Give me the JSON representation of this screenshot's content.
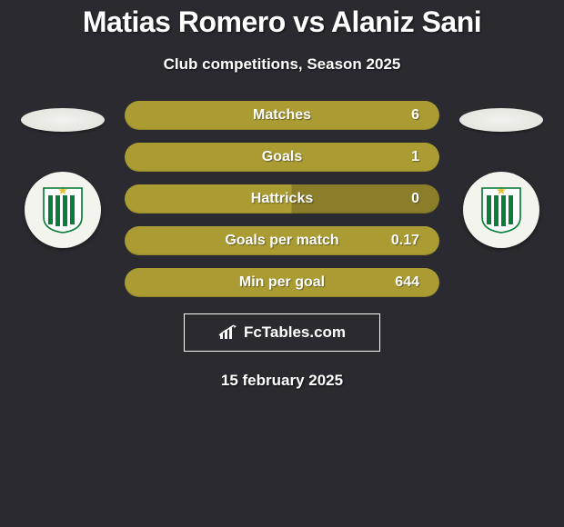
{
  "title_parts": {
    "p1": "Matias Romero",
    "vs": " vs ",
    "p2": "Alaniz Sani"
  },
  "subtitle": "Club competitions, Season 2025",
  "stats": [
    {
      "label": "Matches",
      "value": "6",
      "fill_pct": 100,
      "bar_color": "#aa9c33",
      "rest_color": "#aa9c33"
    },
    {
      "label": "Goals",
      "value": "1",
      "fill_pct": 100,
      "bar_color": "#aa9c33",
      "rest_color": "#aa9c33"
    },
    {
      "label": "Hattricks",
      "value": "0",
      "fill_pct": 53,
      "bar_color": "#aa9c33",
      "rest_color": "#8a7e2a"
    },
    {
      "label": "Goals per match",
      "value": "0.17",
      "fill_pct": 100,
      "bar_color": "#aa9c33",
      "rest_color": "#aa9c33"
    },
    {
      "label": "Min per goal",
      "value": "644",
      "fill_pct": 100,
      "bar_color": "#aa9c33",
      "rest_color": "#aa9c33"
    }
  ],
  "colors": {
    "background": "#2a2a30",
    "title": "#ffffff",
    "badge_bg": "#f4f4ee",
    "stripe_green": "#0a7d3a",
    "stripe_white": "#ffffff",
    "shield_outline": "#0a7d3a",
    "star": "#e6c23c"
  },
  "brand": {
    "text": "FcTables.com",
    "icon": "bar-chart-icon"
  },
  "date": "15 february 2025"
}
